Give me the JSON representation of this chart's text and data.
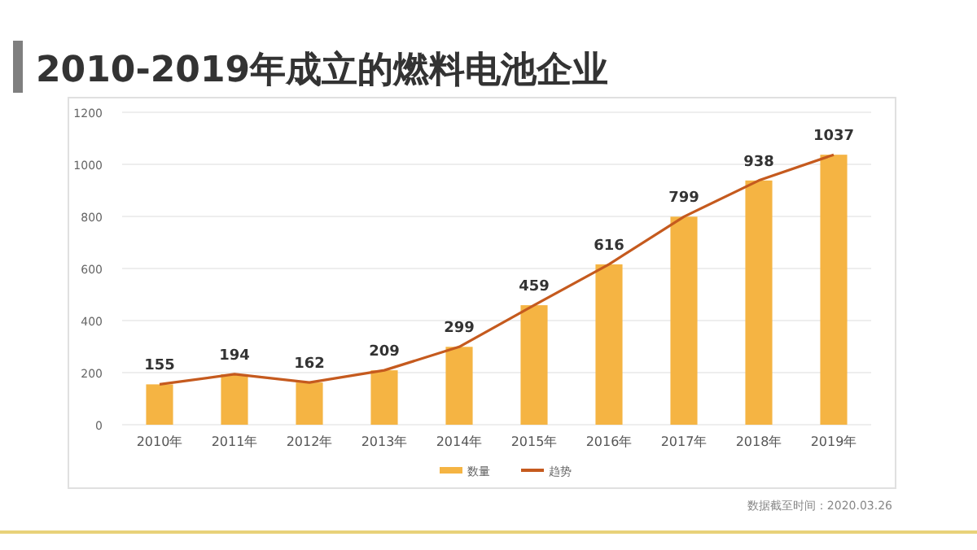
{
  "chart_data": {
    "type": "bar",
    "title": "2010-2019年成立的燃料电池企业",
    "categories": [
      "2010年",
      "2011年",
      "2012年",
      "2013年",
      "2014年",
      "2015年",
      "2016年",
      "2017年",
      "2018年",
      "2019年"
    ],
    "series": [
      {
        "name": "数量",
        "color": "#f5b443",
        "values": [
          155,
          194,
          162,
          209,
          299,
          459,
          616,
          799,
          938,
          1037
        ],
        "value_labels": [
          "155",
          "194",
          "162",
          "209",
          "299",
          "459",
          "616",
          "799",
          "938",
          "1037"
        ]
      },
      {
        "name": "趋势",
        "type": "line",
        "color": "#c55a1e",
        "values": [
          155,
          194,
          162,
          209,
          299,
          459,
          616,
          799,
          938,
          1037
        ]
      }
    ],
    "ylim": [
      0,
      1200
    ],
    "yticks": [
      0,
      200,
      400,
      600,
      800,
      1000,
      1200
    ],
    "grid": "y",
    "legend": "bottom",
    "annotations": [
      "数据截至时间：2020.03.26"
    ]
  }
}
